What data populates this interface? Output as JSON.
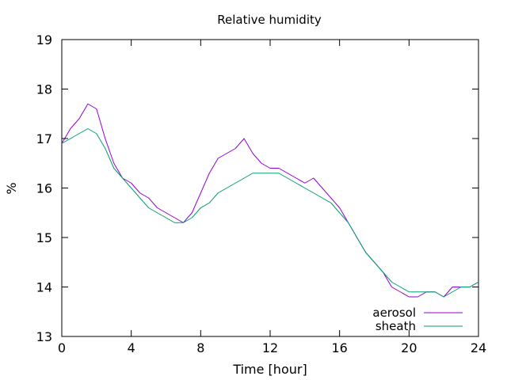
{
  "chart_data": {
    "type": "line",
    "title": "Relative humidity",
    "xlabel": "Time [hour]",
    "ylabel": "%",
    "xlim": [
      0,
      24
    ],
    "ylim": [
      13,
      19
    ],
    "xticks": [
      0,
      4,
      8,
      12,
      16,
      20,
      24
    ],
    "yticks": [
      13,
      14,
      15,
      16,
      17,
      18,
      19
    ],
    "grid": false,
    "legend_position": "bottom-right",
    "series": [
      {
        "name": "aerosol",
        "color": "#9400d3",
        "x": [
          0,
          0.5,
          1,
          1.5,
          2,
          2.5,
          3,
          3.5,
          4,
          4.5,
          5,
          5.5,
          6,
          6.5,
          7,
          7.5,
          8,
          8.5,
          9,
          9.5,
          10,
          10.5,
          11,
          11.5,
          12,
          12.5,
          13,
          13.5,
          14,
          14.5,
          15,
          15.5,
          16,
          16.5,
          17,
          17.5,
          18,
          18.5,
          19,
          19.5,
          20,
          20.5,
          21,
          21.5,
          22,
          22.5,
          23,
          23.5,
          24
        ],
        "y": [
          16.9,
          17.2,
          17.4,
          17.7,
          17.6,
          17.0,
          16.5,
          16.2,
          16.1,
          15.9,
          15.8,
          15.6,
          15.5,
          15.4,
          15.3,
          15.5,
          15.9,
          16.3,
          16.6,
          16.7,
          16.8,
          17.0,
          16.7,
          16.5,
          16.4,
          16.4,
          16.3,
          16.2,
          16.1,
          16.2,
          16.0,
          15.8,
          15.6,
          15.3,
          15.0,
          14.7,
          14.5,
          14.3,
          14.0,
          13.9,
          13.8,
          13.8,
          13.9,
          13.9,
          13.8,
          14.0,
          14.0,
          14.0,
          14.1
        ]
      },
      {
        "name": "sheath",
        "color": "#009e73",
        "x": [
          0,
          0.5,
          1,
          1.5,
          2,
          2.5,
          3,
          3.5,
          4,
          4.5,
          5,
          5.5,
          6,
          6.5,
          7,
          7.5,
          8,
          8.5,
          9,
          9.5,
          10,
          10.5,
          11,
          11.5,
          12,
          12.5,
          13,
          13.5,
          14,
          14.5,
          15,
          15.5,
          16,
          16.5,
          17,
          17.5,
          18,
          18.5,
          19,
          19.5,
          20,
          20.5,
          21,
          21.5,
          22,
          22.5,
          23,
          23.5,
          24
        ],
        "y": [
          16.9,
          17.0,
          17.1,
          17.2,
          17.1,
          16.8,
          16.4,
          16.2,
          16.0,
          15.8,
          15.6,
          15.5,
          15.4,
          15.3,
          15.3,
          15.4,
          15.6,
          15.7,
          15.9,
          16.0,
          16.1,
          16.2,
          16.3,
          16.3,
          16.3,
          16.3,
          16.2,
          16.1,
          16.0,
          15.9,
          15.8,
          15.7,
          15.5,
          15.3,
          15.0,
          14.7,
          14.5,
          14.3,
          14.1,
          14.0,
          13.9,
          13.9,
          13.9,
          13.9,
          13.8,
          13.9,
          14.0,
          14.0,
          14.1
        ]
      }
    ]
  }
}
